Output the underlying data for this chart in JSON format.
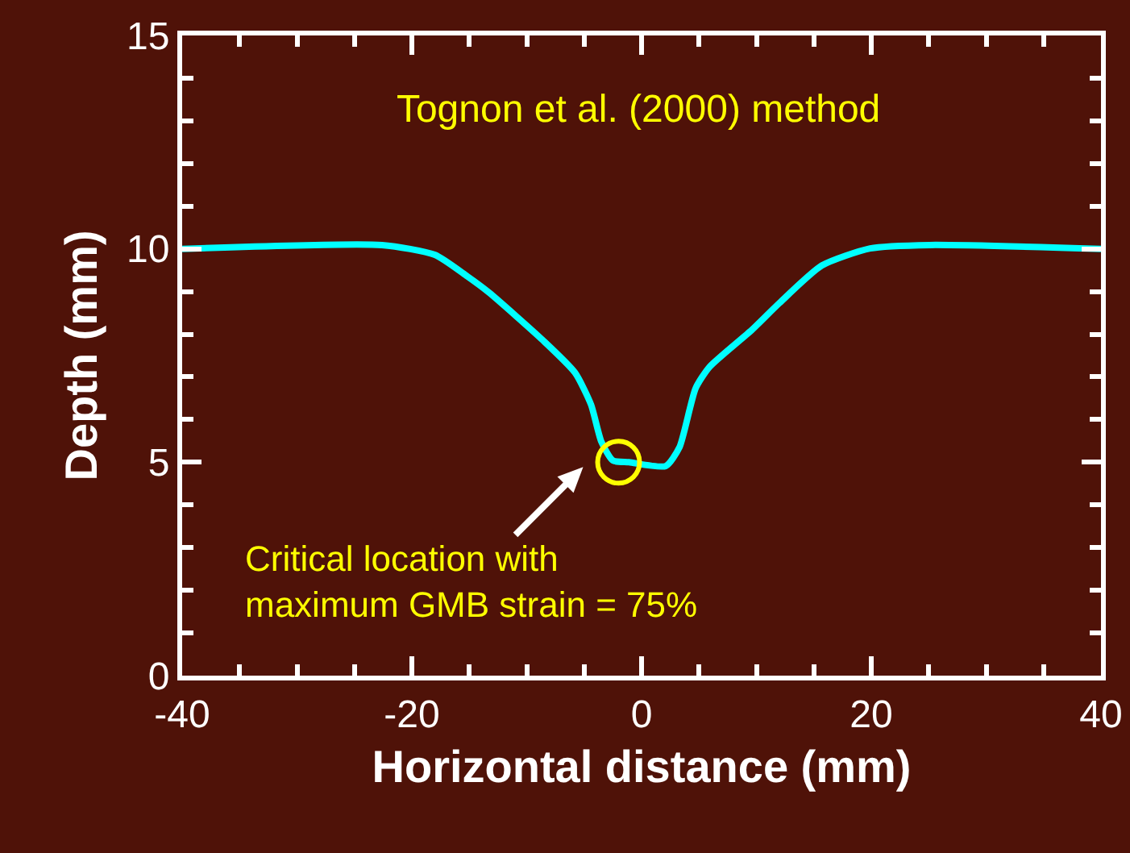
{
  "chart_data": {
    "type": "line",
    "title": "Tognon et al. (2000) method",
    "xlabel": "Horizontal distance (mm)",
    "ylabel": "Depth (mm)",
    "x": [
      -40,
      -22.6,
      -18,
      -15.2,
      -13.3,
      -8.6,
      -5.8,
      -4.4,
      -3.5,
      -2.5,
      -1.1,
      2.1,
      3.3,
      4.7,
      5.9,
      9.6,
      12,
      15.7,
      19.9,
      25.1,
      40
    ],
    "series": [
      {
        "color": "#00ffff",
        "values": [
          10,
          10.09,
          9.86,
          9.36,
          8.98,
          7.86,
          7.1,
          6.35,
          5.48,
          5.04,
          5,
          4.91,
          5.35,
          6.73,
          7.23,
          8.1,
          8.73,
          9.61,
          10.01,
          10.09,
          10
        ]
      }
    ],
    "xlim": [
      -40,
      40
    ],
    "xticks": [
      -40,
      -20,
      0,
      20,
      40
    ],
    "ylim": [
      0,
      15
    ],
    "yticks": [
      0,
      5,
      10,
      15
    ],
    "annotations": [
      {
        "text": "Critical location with\nmaximum GMB strain = 75%",
        "x": -2,
        "y": 5
      }
    ],
    "grid": false,
    "marker": "none",
    "line_style": "solid"
  }
}
